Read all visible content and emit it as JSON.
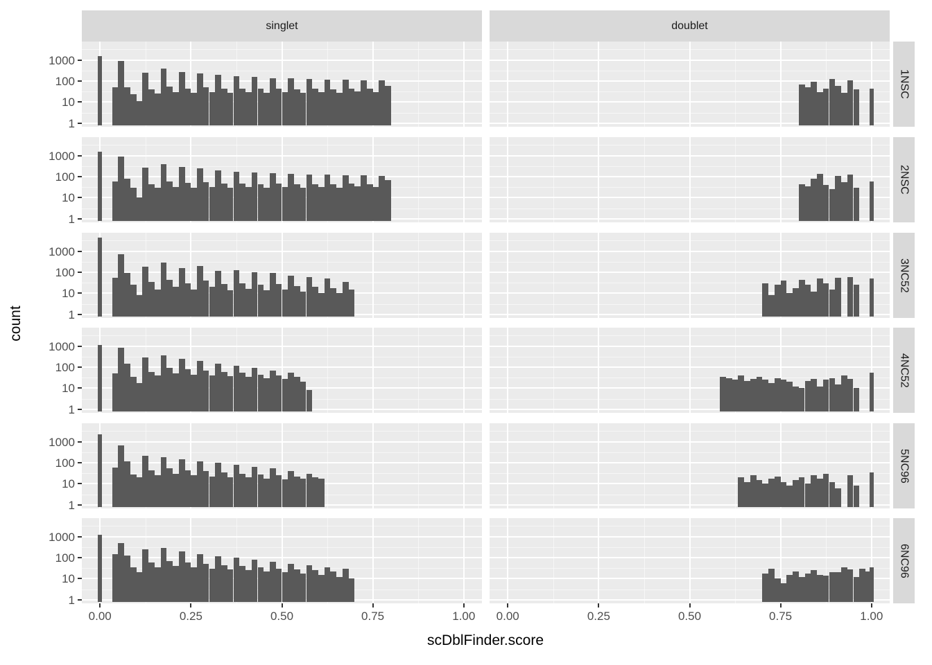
{
  "figure": {
    "background": "#FFFFFF",
    "panel_bg": "#EBEBEB",
    "strip_bg": "#D9D9D9",
    "bar_color": "#595959",
    "grid_major_color": "#FFFFFF",
    "grid_minor_color": "#F5F5F5",
    "axis_text_color": "#4D4D4D",
    "tick_mark_color": "#333333"
  },
  "chart_data": {
    "type": "bar",
    "subtype": "faceted-histogram-grid",
    "x_label": "scDblFinder.score",
    "y_label": "count",
    "col_facets": [
      "singlet",
      "doublet"
    ],
    "row_facets": [
      "1NSC",
      "2NSC",
      "3NC52",
      "4NC52",
      "5NC96",
      "6NC96"
    ],
    "x_tick_labels": [
      "0.00",
      "0.25",
      "0.50",
      "0.75",
      "1.00"
    ],
    "x_tick_values": [
      0,
      0.25,
      0.5,
      0.75,
      1.0
    ],
    "y_tick_labels": [
      "1000",
      "100",
      "10",
      "1"
    ],
    "y_tick_values": [
      1000,
      100,
      10,
      1
    ],
    "y_scale": "log10",
    "y_range_log10": [
      -0.17,
      3.87
    ],
    "x_range": [
      -0.05,
      1.05
    ],
    "x_minor_breaks": [
      0.125,
      0.375,
      0.625,
      0.875
    ],
    "y_minor_breaks_log10": [
      0.5,
      1.5,
      2.5,
      3.5
    ],
    "bin_width": 0.016667,
    "grid": "on",
    "legend": "none",
    "panels": [
      {
        "row": "1NSC",
        "col": "singlet",
        "zero_spike": 1500,
        "start": 0.0333,
        "counts": [
          50,
          880,
          50,
          24,
          11,
          250,
          40,
          26,
          380,
          55,
          30,
          260,
          45,
          28,
          230,
          50,
          30,
          190,
          45,
          28,
          170,
          45,
          30,
          155,
          42,
          28,
          140,
          45,
          30,
          135,
          40,
          28,
          125,
          42,
          30,
          120,
          40,
          28,
          115,
          45,
          32,
          110,
          42,
          30,
          105,
          60
        ]
      },
      {
        "row": "1NSC",
        "col": "doublet",
        "start": 0.8,
        "counts": [
          70,
          50,
          95,
          30,
          45,
          130,
          60,
          28,
          105,
          40
        ],
        "end_spike": 45
      },
      {
        "row": "2NSC",
        "col": "singlet",
        "zero_spike": 1500,
        "start": 0.0333,
        "counts": [
          60,
          900,
          80,
          30,
          10,
          260,
          45,
          30,
          400,
          60,
          32,
          280,
          50,
          30,
          240,
          55,
          32,
          200,
          48,
          30,
          175,
          48,
          32,
          160,
          45,
          30,
          150,
          48,
          32,
          140,
          42,
          30,
          130,
          45,
          32,
          125,
          42,
          30,
          120,
          48,
          34,
          115,
          45,
          32,
          110,
          70
        ]
      },
      {
        "row": "2NSC",
        "col": "doublet",
        "start": 0.8,
        "counts": [
          45,
          35,
          80,
          140,
          40,
          25,
          110,
          55,
          130,
          30
        ],
        "end_spike": 60
      },
      {
        "row": "3NC52",
        "col": "singlet",
        "zero_spike": 4400,
        "start": 0.0333,
        "counts": [
          55,
          700,
          90,
          25,
          8,
          180,
          35,
          15,
          280,
          45,
          20,
          160,
          30,
          15,
          200,
          40,
          20,
          120,
          28,
          14,
          130,
          30,
          16,
          100,
          25,
          14,
          90,
          28,
          15,
          70,
          22,
          12,
          60,
          20,
          10,
          50,
          18,
          10,
          35,
          15
        ]
      },
      {
        "row": "3NC52",
        "col": "doublet",
        "start": 0.7,
        "counts": [
          30,
          8,
          25,
          40,
          10,
          18,
          45,
          25,
          12,
          50,
          30,
          15,
          55,
          0,
          60,
          25
        ],
        "end_spike": 50
      },
      {
        "row": "4NC52",
        "col": "singlet",
        "zero_spike": 1100,
        "start": 0.0333,
        "counts": [
          50,
          800,
          150,
          35,
          18,
          280,
          60,
          40,
          350,
          90,
          50,
          250,
          80,
          45,
          200,
          70,
          40,
          150,
          60,
          38,
          120,
          55,
          35,
          90,
          45,
          30,
          70,
          40,
          28,
          55,
          35,
          20,
          8
        ]
      },
      {
        "row": "4NC52",
        "col": "doublet",
        "start": 0.5833,
        "counts": [
          35,
          30,
          25,
          40,
          22,
          28,
          35,
          25,
          18,
          30,
          25,
          20,
          12,
          10,
          22,
          28,
          12,
          25,
          30,
          15,
          40,
          28,
          10
        ],
        "end_spike": 55
      },
      {
        "row": "5NC96",
        "col": "singlet",
        "zero_spike": 2200,
        "start": 0.0333,
        "counts": [
          60,
          650,
          120,
          28,
          20,
          220,
          45,
          25,
          180,
          55,
          30,
          150,
          45,
          25,
          120,
          40,
          22,
          100,
          35,
          20,
          80,
          30,
          20,
          65,
          28,
          18,
          55,
          25,
          16,
          40,
          22,
          18,
          30,
          20,
          18
        ]
      },
      {
        "row": "5NC96",
        "col": "doublet",
        "start": 0.6333,
        "counts": [
          20,
          12,
          25,
          15,
          10,
          18,
          22,
          12,
          8,
          15,
          20,
          10,
          25,
          18,
          30,
          12,
          6,
          0,
          25,
          8
        ],
        "end_spike": 35
      },
      {
        "row": "6NC96",
        "col": "singlet",
        "zero_spike": 1200,
        "start": 0.0333,
        "counts": [
          150,
          500,
          130,
          35,
          20,
          250,
          60,
          35,
          280,
          70,
          40,
          200,
          60,
          35,
          150,
          50,
          30,
          120,
          45,
          28,
          100,
          40,
          25,
          80,
          35,
          22,
          65,
          30,
          20,
          50,
          28,
          18,
          45,
          25,
          15,
          35,
          22,
          12,
          30,
          10
        ]
      },
      {
        "row": "6NC96",
        "col": "doublet",
        "start": 0.7,
        "counts": [
          18,
          30,
          10,
          6,
          15,
          22,
          12,
          18,
          25,
          15,
          14,
          20,
          20,
          35,
          28,
          12,
          30,
          22
        ],
        "end_spike": 35
      }
    ]
  }
}
